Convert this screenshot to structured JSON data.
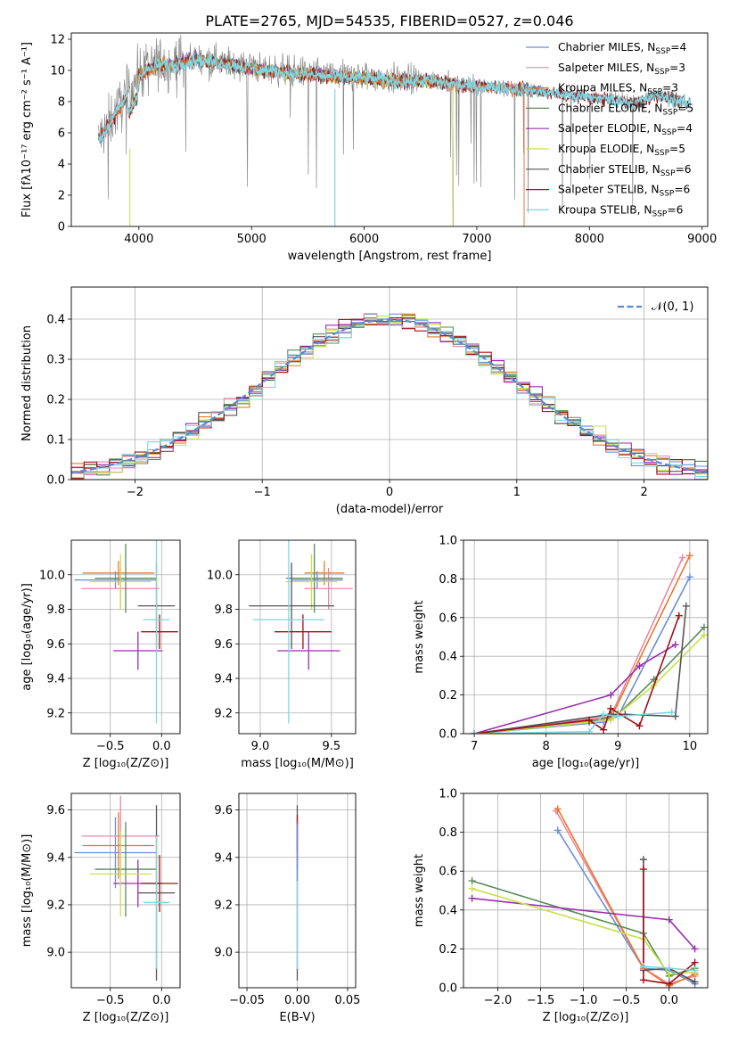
{
  "figure_title": "PLATE=2765, MJD=54535, FIBERID=0527, z=0.046",
  "colors": {
    "Chabrier MILES": "#6b8fd6",
    "Salpeter MILES": "#e88aa5",
    "Kroupa MILES": "#e8772e",
    "Chabrier ELODIE": "#5a8a5a",
    "Salpeter ELODIE": "#9b2fae",
    "Kroupa ELODIE": "#c8e04a",
    "Chabrier STELIB": "#555555",
    "Salpeter STELIB": "#a0101a",
    "Kroupa STELIB": "#7fd6e0",
    "data": "#888888",
    "gauss": "#5b8bd0"
  },
  "chart_data": [
    {
      "id": "spectrum",
      "type": "line",
      "xlabel": "wavelength [Angstrom, rest frame]",
      "ylabel": "Flux [fλ10⁻¹⁷ erg cm⁻² s⁻¹ A⁻¹]",
      "xlim": [
        3400,
        9050
      ],
      "ylim": [
        0,
        12.4
      ],
      "xticks": [
        4000,
        5000,
        6000,
        7000,
        8000,
        9000
      ],
      "yticks": [
        0,
        2,
        4,
        6,
        8,
        10,
        12
      ],
      "grid": false,
      "legend_placement": "top-right",
      "legend": [
        {
          "name": "Chabrier MILES",
          "nssp": "4"
        },
        {
          "name": "Salpeter MILES",
          "nssp": "3"
        },
        {
          "name": "Kroupa MILES",
          "nssp": "3"
        },
        {
          "name": "Chabrier ELODIE",
          "nssp": "5"
        },
        {
          "name": "Salpeter ELODIE",
          "nssp": "4"
        },
        {
          "name": "Kroupa ELODIE",
          "nssp": "5"
        },
        {
          "name": "Chabrier STELIB",
          "nssp": "6"
        },
        {
          "name": "Salpeter STELIB",
          "nssp": "6"
        },
        {
          "name": "Kroupa STELIB",
          "nssp": "6"
        }
      ],
      "continuum": {
        "x": [
          3640,
          3700,
          3800,
          3900,
          4000,
          4100,
          4200,
          4300,
          4500,
          4800,
          5100,
          5400,
          5700,
          6000,
          6300,
          6600,
          6900,
          7200,
          7500,
          7800,
          8100,
          8400,
          8600,
          8900
        ],
        "y": [
          5.6,
          6.2,
          7.4,
          8.5,
          9.8,
          10.2,
          10.5,
          10.4,
          10.8,
          10.5,
          10.1,
          9.9,
          9.7,
          9.6,
          9.4,
          9.4,
          9.1,
          9.0,
          8.8,
          8.5,
          8.3,
          8.0,
          8.5,
          7.9
        ]
      }
    },
    {
      "id": "residuals",
      "type": "line",
      "xlabel": "(data-model)/error",
      "ylabel": "Normed distribution",
      "xlim": [
        -2.5,
        2.5
      ],
      "ylim": [
        0,
        0.48
      ],
      "xticks": [
        -2,
        -1,
        0,
        1,
        2
      ],
      "yticks": [
        0.0,
        0.1,
        0.2,
        0.3,
        0.4
      ],
      "grid": true,
      "legend_placement": "top-right",
      "gauss_label": "𝒩(0, 1)"
    },
    {
      "id": "age-vs-Z",
      "type": "scatter",
      "xlabel": "Z [log₁₀(Z/Z⊙)]",
      "ylabel": "age  [log₁₀(age/yr)]",
      "xlim": [
        -0.88,
        0.18
      ],
      "ylim": [
        9.08,
        10.2
      ],
      "xticks": [
        -0.5,
        0.0
      ],
      "yticks": [
        9.2,
        9.4,
        9.6,
        9.8,
        10.0
      ],
      "grid": true,
      "points": [
        {
          "series": "Chabrier MILES",
          "x": -0.45,
          "y": 9.97,
          "xerr": 0.4,
          "yerr": 0.05
        },
        {
          "series": "Salpeter MILES",
          "x": -0.4,
          "y": 9.92,
          "xerr": 0.38,
          "yerr": 0.12
        },
        {
          "series": "Kroupa MILES",
          "x": -0.42,
          "y": 10.01,
          "xerr": 0.35,
          "yerr": 0.07
        },
        {
          "series": "Chabrier ELODIE",
          "x": -0.35,
          "y": 9.98,
          "xerr": 0.3,
          "yerr": 0.2
        },
        {
          "series": "Salpeter ELODIE",
          "x": -0.23,
          "y": 9.56,
          "xerr": 0.24,
          "yerr": 0.11
        },
        {
          "series": "Kroupa ELODIE",
          "x": -0.4,
          "y": 9.96,
          "xerr": 0.3,
          "yerr": 0.16
        },
        {
          "series": "Chabrier STELIB",
          "x": -0.05,
          "y": 9.82,
          "xerr": 0.18,
          "yerr": 0.25
        },
        {
          "series": "Salpeter STELIB",
          "x": -0.02,
          "y": 9.67,
          "xerr": 0.18,
          "yerr": 0.1
        },
        {
          "series": "Kroupa STELIB",
          "x": -0.05,
          "y": 9.74,
          "xerr": 0.13,
          "yerr": 0.6
        }
      ]
    },
    {
      "id": "age-vs-mass",
      "type": "scatter",
      "xlabel": "mass [log₁₀(M/M⊙)]",
      "ylabel": "",
      "xlim": [
        8.85,
        9.67
      ],
      "ylim": [
        9.08,
        10.2
      ],
      "xticks": [
        9.0,
        9.5
      ],
      "yticks": [
        9.2,
        9.4,
        9.6,
        9.8,
        10.0
      ],
      "grid": true,
      "points": [
        {
          "series": "Chabrier MILES",
          "x": 9.4,
          "y": 9.97,
          "xerr": 0.18,
          "yerr": 0.05
        },
        {
          "series": "Salpeter MILES",
          "x": 9.48,
          "y": 9.92,
          "xerr": 0.17,
          "yerr": 0.12
        },
        {
          "series": "Kroupa MILES",
          "x": 9.45,
          "y": 10.01,
          "xerr": 0.14,
          "yerr": 0.07
        },
        {
          "series": "Chabrier ELODIE",
          "x": 9.38,
          "y": 9.98,
          "xerr": 0.2,
          "yerr": 0.2
        },
        {
          "series": "Salpeter ELODIE",
          "x": 9.34,
          "y": 9.56,
          "xerr": 0.22,
          "yerr": 0.11
        },
        {
          "series": "Kroupa ELODIE",
          "x": 9.36,
          "y": 9.96,
          "xerr": 0.18,
          "yerr": 0.16
        },
        {
          "series": "Chabrier STELIB",
          "x": 9.22,
          "y": 9.82,
          "xerr": 0.3,
          "yerr": 0.25
        },
        {
          "series": "Salpeter STELIB",
          "x": 9.3,
          "y": 9.67,
          "xerr": 0.2,
          "yerr": 0.1
        },
        {
          "series": "Kroupa STELIB",
          "x": 9.2,
          "y": 9.74,
          "xerr": 0.25,
          "yerr": 0.6
        }
      ]
    },
    {
      "id": "mass-weight-vs-age",
      "type": "line",
      "xlabel": "age  [log₁₀(age/yr)]",
      "ylabel": "mass weight",
      "xlim": [
        6.85,
        10.25
      ],
      "ylim": [
        0,
        1.0
      ],
      "xticks": [
        7,
        8,
        9,
        10
      ],
      "yticks": [
        0.0,
        0.2,
        0.4,
        0.6,
        0.8,
        1.0
      ],
      "grid": true,
      "series": [
        {
          "name": "Chabrier MILES",
          "x": [
            7.0,
            8.8,
            9.0,
            10.0
          ],
          "y": [
            0.0,
            0.06,
            0.09,
            0.81
          ]
        },
        {
          "name": "Salpeter MILES",
          "x": [
            7.0,
            8.9,
            9.9
          ],
          "y": [
            0.0,
            0.09,
            0.91
          ]
        },
        {
          "name": "Kroupa MILES",
          "x": [
            7.0,
            8.9,
            10.0
          ],
          "y": [
            0.0,
            0.08,
            0.92
          ]
        },
        {
          "name": "Chabrier ELODIE",
          "x": [
            7.0,
            8.6,
            9.0,
            9.5,
            10.2
          ],
          "y": [
            0.0,
            0.06,
            0.1,
            0.28,
            0.55
          ]
        },
        {
          "name": "Salpeter ELODIE",
          "x": [
            7.0,
            8.9,
            9.3,
            9.8
          ],
          "y": [
            0.0,
            0.2,
            0.35,
            0.46
          ]
        },
        {
          "name": "Kroupa ELODIE",
          "x": [
            7.0,
            8.9,
            9.5,
            10.2
          ],
          "y": [
            0.0,
            0.07,
            0.25,
            0.51
          ]
        },
        {
          "name": "Chabrier STELIB",
          "x": [
            7.0,
            8.9,
            9.1,
            9.8,
            9.95
          ],
          "y": [
            0.0,
            0.1,
            0.1,
            0.09,
            0.66
          ]
        },
        {
          "name": "Salpeter STELIB",
          "x": [
            7.0,
            8.6,
            8.8,
            8.9,
            9.3,
            9.85
          ],
          "y": [
            0.0,
            0.07,
            0.02,
            0.13,
            0.04,
            0.61
          ]
        },
        {
          "name": "Kroupa STELIB",
          "x": [
            7.0,
            8.6,
            8.8,
            9.0,
            9.75
          ],
          "y": [
            0.0,
            0.01,
            0.1,
            0.09,
            0.11
          ]
        }
      ]
    },
    {
      "id": "mass-vs-Z",
      "type": "scatter",
      "xlabel": "Z [log₁₀(Z/Z⊙)]",
      "ylabel": "mass [log₁₀(M/M⊙)]",
      "xlim": [
        -0.88,
        0.18
      ],
      "ylim": [
        8.85,
        9.67
      ],
      "xticks": [
        -0.5,
        0.0
      ],
      "yticks": [
        9.0,
        9.2,
        9.4,
        9.6
      ],
      "grid": true,
      "points": [
        {
          "series": "Chabrier MILES",
          "x": -0.45,
          "y": 9.42,
          "xerr": 0.4,
          "yerr": 0.15
        },
        {
          "series": "Salpeter MILES",
          "x": -0.4,
          "y": 9.49,
          "xerr": 0.38,
          "yerr": 0.17
        },
        {
          "series": "Kroupa MILES",
          "x": -0.42,
          "y": 9.45,
          "xerr": 0.35,
          "yerr": 0.14
        },
        {
          "series": "Chabrier ELODIE",
          "x": -0.35,
          "y": 9.35,
          "xerr": 0.3,
          "yerr": 0.2
        },
        {
          "series": "Salpeter ELODIE",
          "x": -0.23,
          "y": 9.29,
          "xerr": 0.24,
          "yerr": 0.1
        },
        {
          "series": "Kroupa ELODIE",
          "x": -0.4,
          "y": 9.33,
          "xerr": 0.3,
          "yerr": 0.18
        },
        {
          "series": "Chabrier STELIB",
          "x": -0.05,
          "y": 9.25,
          "xerr": 0.18,
          "yerr": 0.37
        },
        {
          "series": "Salpeter STELIB",
          "x": -0.02,
          "y": 9.29,
          "xerr": 0.18,
          "yerr": 0.12
        },
        {
          "series": "Kroupa STELIB",
          "x": -0.05,
          "y": 9.21,
          "xerr": 0.13,
          "yerr": 0.28
        }
      ]
    },
    {
      "id": "mass-vs-ebv",
      "type": "scatter",
      "xlabel": "E(B-V)",
      "ylabel": "",
      "xlim": [
        -0.058,
        0.058
      ],
      "ylim": [
        8.85,
        9.67
      ],
      "xticks": [
        -0.05,
        0.0,
        0.05
      ],
      "yticks": [
        9.0,
        9.2,
        9.4,
        9.6
      ],
      "grid": true,
      "points": [
        {
          "series": "Chabrier STELIB",
          "x": 0.0,
          "y": 9.25,
          "xerr": 0.0,
          "yerr": 0.37
        },
        {
          "series": "Kroupa STELIB",
          "x": 0.0,
          "y": 9.21,
          "xerr": 0.0,
          "yerr": 0.28
        },
        {
          "series": "Salpeter STELIB",
          "x": 0.0,
          "y": 9.5,
          "xerr": 0.0,
          "yerr": 0.08
        },
        {
          "series": "Salpeter ELODIE",
          "x": 0.0,
          "y": 9.45,
          "xerr": 0.0,
          "yerr": 0.1
        },
        {
          "series": "Chabrier MILES",
          "x": 0.0,
          "y": 9.42,
          "xerr": 0.0,
          "yerr": 0.12
        }
      ]
    },
    {
      "id": "mass-weight-vs-Z",
      "type": "line",
      "xlabel": "Z [log₁₀(Z/Z⊙)]",
      "ylabel": "mass weight",
      "xlim": [
        -2.4,
        0.45
      ],
      "ylim": [
        0,
        1.0
      ],
      "xticks": [
        -2.0,
        -1.5,
        -1.0,
        -0.5,
        0.0
      ],
      "yticks": [
        0.0,
        0.2,
        0.4,
        0.6,
        0.8,
        1.0
      ],
      "grid": true,
      "series": [
        {
          "name": "Chabrier MILES",
          "x": [
            -1.3,
            -0.3,
            0.0,
            0.3
          ],
          "y": [
            0.81,
            0.1,
            0.09,
            0.02
          ]
        },
        {
          "name": "Salpeter MILES",
          "x": [
            -1.32,
            -0.3,
            0.0,
            0.3
          ],
          "y": [
            0.91,
            0.1,
            0.02,
            0.06
          ]
        },
        {
          "name": "Kroupa MILES",
          "x": [
            -1.3,
            -0.3,
            0.0,
            0.3
          ],
          "y": [
            0.92,
            0.1,
            0.01,
            0.07
          ]
        },
        {
          "name": "Chabrier ELODIE",
          "x": [
            -2.3,
            -0.3,
            0.0,
            0.3
          ],
          "y": [
            0.55,
            0.28,
            0.06,
            0.1
          ]
        },
        {
          "name": "Salpeter ELODIE",
          "x": [
            -2.3,
            0.0,
            0.3
          ],
          "y": [
            0.46,
            0.35,
            0.2
          ]
        },
        {
          "name": "Kroupa ELODIE",
          "x": [
            -2.3,
            -0.3,
            0.0,
            0.3
          ],
          "y": [
            0.51,
            0.25,
            0.07,
            0.08
          ]
        },
        {
          "name": "Chabrier STELIB",
          "x": [
            -0.3,
            -0.3,
            0.0,
            0.3
          ],
          "y": [
            0.66,
            0.09,
            0.1,
            0.03
          ]
        },
        {
          "name": "Salpeter STELIB",
          "x": [
            -0.3,
            -0.3,
            0.0,
            0.3
          ],
          "y": [
            0.61,
            0.04,
            0.02,
            0.13
          ]
        },
        {
          "name": "Kroupa STELIB",
          "x": [
            -0.3,
            0.0,
            0.3
          ],
          "y": [
            0.11,
            0.1,
            0.09
          ]
        }
      ]
    }
  ]
}
